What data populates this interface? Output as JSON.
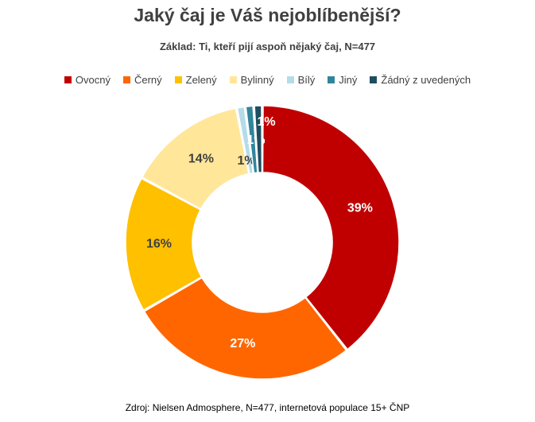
{
  "chart_data": {
    "type": "pie",
    "style": "donut",
    "title": "Jaký čaj je Váš nejoblíbenější?",
    "subtitle": "Základ: Ti, kteří pijí aspoň nějaký čaj, N=477",
    "legend_position": "top",
    "categories": [
      "Ovocný",
      "Černý",
      "Zelený",
      "Bylinný",
      "Bílý",
      "Jiný",
      "Žádný z uvedených"
    ],
    "values": [
      39,
      27,
      16,
      14,
      1,
      1,
      1
    ],
    "data_labels": [
      "39%",
      "27%",
      "16%",
      "14%",
      "1%",
      "1%",
      "1%"
    ],
    "colors": [
      "#C00000",
      "#FF6600",
      "#FFC000",
      "#FFE699",
      "#B4DCE8",
      "#31859C",
      "#1F4E5F"
    ],
    "label_colors": [
      "#FFFFFF",
      "#FFFFFF",
      "#404040",
      "#404040",
      "#404040",
      "#FFFFFF",
      "#FFFFFF"
    ],
    "unit": "%"
  },
  "source": "Zdroj: Nielsen Admosphere, N=477, internetová populace 15+ ČNP"
}
